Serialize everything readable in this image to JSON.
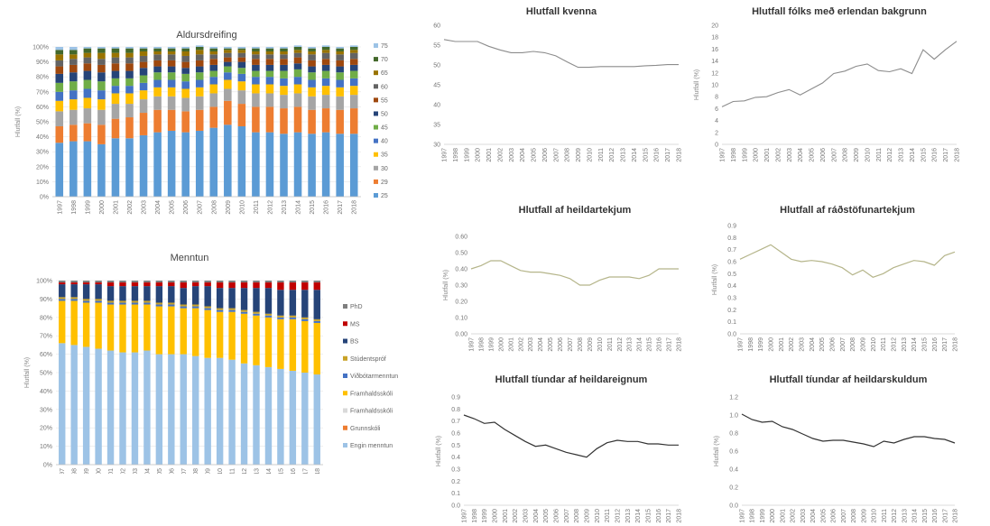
{
  "chart_data": [
    {
      "id": "aldursdreifing",
      "type": "bar",
      "stacked": true,
      "title": "Aldursdreifing",
      "ylabel": "Hlutfall (%)",
      "ylim": [
        0,
        100
      ],
      "yticks": [
        "0%",
        "10%",
        "20%",
        "30%",
        "40%",
        "50%",
        "60%",
        "70%",
        "80%",
        "90%",
        "100%"
      ],
      "categories": [
        "1997",
        "1998",
        "1999",
        "2000",
        "2001",
        "2002",
        "2003",
        "2004",
        "2005",
        "2006",
        "2007",
        "2008",
        "2009",
        "2010",
        "2011",
        "2012",
        "2013",
        "2014",
        "2015",
        "2016",
        "2017",
        "2018"
      ],
      "legend_position": "right",
      "series": [
        {
          "name": "25",
          "color": "#5b9bd5",
          "values": [
            36,
            37,
            37,
            35,
            39,
            39,
            41,
            43,
            44,
            43,
            44,
            46,
            48,
            47,
            43,
            43,
            42,
            43,
            42,
            43,
            42,
            42
          ]
        },
        {
          "name": "29",
          "color": "#ed7d31",
          "values": [
            11,
            11,
            12,
            13,
            13,
            14,
            15,
            15,
            14,
            14,
            14,
            14,
            16,
            15,
            17,
            17,
            17,
            17,
            16,
            16,
            16,
            17
          ]
        },
        {
          "name": "30",
          "color": "#a5a5a5",
          "values": [
            10,
            10,
            10,
            10,
            10,
            9,
            9,
            9,
            9,
            9,
            9,
            9,
            8,
            9,
            9,
            9,
            9,
            9,
            9,
            9,
            9,
            9
          ]
        },
        {
          "name": "35",
          "color": "#ffc000",
          "values": [
            7,
            7,
            7,
            7,
            7,
            7,
            6,
            6,
            6,
            6,
            6,
            6,
            6,
            6,
            6,
            6,
            6,
            6,
            6,
            6,
            6,
            6
          ]
        },
        {
          "name": "40",
          "color": "#4472c4",
          "values": [
            6,
            6,
            6,
            6,
            5,
            5,
            5,
            5,
            5,
            5,
            5,
            5,
            5,
            5,
            5,
            5,
            5,
            5,
            5,
            5,
            5,
            5
          ]
        },
        {
          "name": "45",
          "color": "#70ad47",
          "values": [
            6,
            6,
            6,
            6,
            5,
            5,
            5,
            5,
            5,
            5,
            5,
            4,
            4,
            4,
            4,
            4,
            5,
            5,
            5,
            5,
            5,
            5
          ]
        },
        {
          "name": "50",
          "color": "#264478",
          "values": [
            6,
            6,
            6,
            6,
            5,
            5,
            5,
            4,
            4,
            4,
            4,
            4,
            3,
            4,
            4,
            4,
            4,
            4,
            4,
            4,
            4,
            4
          ]
        },
        {
          "name": "55",
          "color": "#9e480e",
          "values": [
            5,
            5,
            5,
            5,
            5,
            5,
            4,
            4,
            4,
            4,
            4,
            4,
            3,
            3,
            4,
            4,
            4,
            4,
            4,
            4,
            4,
            4
          ]
        },
        {
          "name": "60",
          "color": "#636363",
          "values": [
            4,
            4,
            4,
            4,
            4,
            4,
            4,
            4,
            4,
            4,
            4,
            3,
            3,
            3,
            3,
            3,
            3,
            3,
            4,
            4,
            4,
            4
          ]
        },
        {
          "name": "65",
          "color": "#997300",
          "values": [
            4,
            3,
            3,
            4,
            3,
            3,
            3,
            2,
            2,
            3,
            3,
            2,
            2,
            2,
            2,
            2,
            2,
            2,
            2,
            2,
            2,
            2
          ]
        },
        {
          "name": "70",
          "color": "#43682b",
          "values": [
            3,
            3,
            3,
            3,
            3,
            3,
            2,
            2,
            2,
            2,
            2,
            2,
            1,
            1,
            2,
            2,
            2,
            2,
            2,
            2,
            2,
            2
          ]
        },
        {
          "name": "75",
          "color": "#9dc3e6",
          "values": [
            2,
            2,
            1,
            1,
            1,
            1,
            1,
            1,
            1,
            1,
            1,
            1,
            1,
            1,
            1,
            1,
            1,
            1,
            1,
            1,
            1,
            1
          ]
        }
      ]
    },
    {
      "id": "menntun",
      "type": "bar",
      "stacked": true,
      "title": "Menntun",
      "ylabel": "Hlutfall (%)",
      "ylim": [
        0,
        100
      ],
      "yticks": [
        "0%",
        "10%",
        "20%",
        "30%",
        "40%",
        "50%",
        "60%",
        "70%",
        "80%",
        "90%",
        "100%"
      ],
      "categories": [
        "1997",
        "1998",
        "1999",
        "2000",
        "2001",
        "2002",
        "2003",
        "2004",
        "2005",
        "2006",
        "2007",
        "2008",
        "2009",
        "2010",
        "2011",
        "2012",
        "2013",
        "2014",
        "2015",
        "2016",
        "2017",
        "2018"
      ],
      "legend_position": "right",
      "series": [
        {
          "name": "Engin menntun",
          "color": "#9dc3e6",
          "values": [
            66,
            65,
            64,
            63,
            62,
            61,
            61,
            62,
            60,
            60,
            60,
            59,
            58,
            58,
            57,
            55,
            54,
            53,
            52,
            51,
            50,
            49
          ]
        },
        {
          "name": "Grunnskóli",
          "color": "#ed7d31",
          "values": [
            0,
            0,
            0,
            0,
            0,
            0,
            0,
            0,
            0,
            0,
            0,
            0,
            0,
            0,
            0,
            0,
            0,
            0,
            0,
            0,
            0,
            0
          ]
        },
        {
          "name": "Framhaldsskóli",
          "color": "#d9d9d9",
          "values": [
            0,
            0,
            0,
            0,
            0,
            0,
            0,
            0,
            0,
            0,
            0,
            0,
            0,
            0,
            0,
            0,
            0,
            0,
            0,
            0,
            0,
            0
          ]
        },
        {
          "name": "Framhaldsskóli",
          "color": "#ffc000",
          "values": [
            23,
            24,
            24,
            25,
            25,
            26,
            26,
            25,
            26,
            26,
            25,
            26,
            26,
            25,
            26,
            27,
            27,
            27,
            27,
            28,
            28,
            28
          ]
        },
        {
          "name": "Viðbótarmenntun",
          "color": "#4472c4",
          "values": [
            1,
            1,
            1,
            1,
            1,
            1,
            1,
            1,
            1,
            1,
            1,
            1,
            1,
            1,
            1,
            1,
            1,
            1,
            1,
            1,
            1,
            1
          ]
        },
        {
          "name": "Stúdentspróf",
          "color": "#c9a227",
          "values": [
            1,
            1,
            1,
            1,
            1,
            1,
            1,
            1,
            1,
            1,
            1,
            1,
            1,
            1,
            1,
            1,
            1,
            1,
            1,
            1,
            1,
            1
          ]
        },
        {
          "name": "BS",
          "color": "#264478",
          "values": [
            7,
            7,
            8,
            8,
            8,
            8,
            8,
            8,
            9,
            9,
            9,
            10,
            11,
            11,
            11,
            12,
            13,
            14,
            14,
            14,
            15,
            16
          ]
        },
        {
          "name": "MS",
          "color": "#c00000",
          "values": [
            1,
            1,
            1,
            1,
            2,
            2,
            2,
            2,
            2,
            2,
            3,
            2,
            2,
            3,
            3,
            3,
            3,
            3,
            4,
            4,
            4,
            4
          ]
        },
        {
          "name": "PhD",
          "color": "#7f7f7f",
          "values": [
            1,
            1,
            1,
            1,
            1,
            1,
            1,
            1,
            1,
            1,
            1,
            1,
            1,
            1,
            1,
            1,
            1,
            1,
            1,
            1,
            1,
            1
          ]
        }
      ]
    },
    {
      "id": "kvenna",
      "type": "line",
      "title": "Hlutfall kvenna",
      "ylabel": "Hlutfall (%)",
      "x": [
        "1997",
        "1998",
        "1999",
        "2000",
        "2001",
        "2002",
        "2003",
        "2004",
        "2005",
        "2006",
        "2007",
        "2008",
        "2009",
        "2010",
        "2011",
        "2012",
        "2013",
        "2014",
        "2015",
        "2016",
        "2017",
        "2018"
      ],
      "ylim": [
        30,
        60
      ],
      "series": [
        {
          "values": [
            56.4,
            55.9,
            55.9,
            55.9,
            54.7,
            53.8,
            53.1,
            53.1,
            53.4,
            53.1,
            52.3,
            50.8,
            49.4,
            49.4,
            49.6,
            49.6,
            49.6,
            49.6,
            49.8,
            49.9,
            50.1,
            50.1
          ]
        }
      ]
    },
    {
      "id": "erlendan",
      "type": "line",
      "title": "Hlutfall fólks með erlendan bakgrunn",
      "ylabel": "Hlutfall (%)",
      "x": [
        "1997",
        "1998",
        "1999",
        "2000",
        "2001",
        "2002",
        "2003",
        "2004",
        "2005",
        "2006",
        "2007",
        "2008",
        "2009",
        "2010",
        "2011",
        "2012",
        "2013",
        "2014",
        "2015",
        "2016",
        "2017",
        "2018"
      ],
      "ylim": [
        0,
        20
      ],
      "series": [
        {
          "values": [
            6.3,
            7.2,
            7.3,
            7.9,
            8.0,
            8.7,
            9.2,
            8.3,
            9.3,
            10.3,
            11.9,
            12.3,
            13.1,
            13.5,
            12.4,
            12.2,
            12.7,
            11.9,
            15.9,
            14.3,
            15.9,
            17.3
          ]
        }
      ]
    },
    {
      "id": "heildartekjum",
      "type": "line",
      "title": "Hlutfall af heildartekjum",
      "ylabel": "Hlutfall (%)",
      "x": [
        "1997",
        "1998",
        "1999",
        "2000",
        "2001",
        "2002",
        "2003",
        "2004",
        "2005",
        "2006",
        "2007",
        "2008",
        "2009",
        "2010",
        "2011",
        "2012",
        "2013",
        "2014",
        "2015",
        "2016",
        "2017",
        "2018"
      ],
      "ylim": [
        0,
        0.6
      ],
      "series": [
        {
          "values": [
            0.4,
            0.42,
            0.45,
            0.45,
            0.42,
            0.39,
            0.38,
            0.38,
            0.37,
            0.36,
            0.34,
            0.3,
            0.3,
            0.33,
            0.35,
            0.35,
            0.35,
            0.34,
            0.36,
            0.4,
            0.4,
            0.4
          ]
        }
      ]
    },
    {
      "id": "radstofunartekjum",
      "type": "line",
      "title": "Hlutfall af ráðstöfunartekjum",
      "ylabel": "Hlutfall (%)",
      "x": [
        "1997",
        "1998",
        "1999",
        "2000",
        "2001",
        "2002",
        "2003",
        "2004",
        "2005",
        "2006",
        "2007",
        "2008",
        "2009",
        "2010",
        "2011",
        "2012",
        "2013",
        "2014",
        "2015",
        "2016",
        "2017",
        "2018"
      ],
      "ylim": [
        0,
        0.9
      ],
      "series": [
        {
          "values": [
            0.62,
            0.66,
            0.7,
            0.74,
            0.68,
            0.62,
            0.6,
            0.61,
            0.6,
            0.58,
            0.55,
            0.49,
            0.53,
            0.47,
            0.5,
            0.55,
            0.58,
            0.61,
            0.6,
            0.57,
            0.65,
            0.68
          ]
        }
      ]
    },
    {
      "id": "heildareignum",
      "type": "line",
      "title": "Hlutfall tíundar af heildareignum",
      "ylabel": "Hlutfall (%)",
      "x": [
        "1997",
        "1998",
        "1999",
        "2000",
        "2001",
        "2002",
        "2003",
        "2004",
        "2005",
        "2006",
        "2007",
        "2008",
        "2009",
        "2010",
        "2011",
        "2012",
        "2013",
        "2014",
        "2015",
        "2016",
        "2017",
        "2018"
      ],
      "ylim": [
        0,
        0.9
      ],
      "series": [
        {
          "values": [
            0.75,
            0.72,
            0.68,
            0.69,
            0.63,
            0.58,
            0.53,
            0.49,
            0.5,
            0.47,
            0.44,
            0.42,
            0.4,
            0.47,
            0.52,
            0.54,
            0.53,
            0.53,
            0.51,
            0.51,
            0.5,
            0.5
          ]
        }
      ]
    },
    {
      "id": "heildarskuldum",
      "type": "line",
      "title": "Hlutfall tíundar af heildarskuldum",
      "ylabel": "Hlutfall (%)",
      "x": [
        "1997",
        "1998",
        "1999",
        "2000",
        "2001",
        "2002",
        "2003",
        "2004",
        "2005",
        "2006",
        "2007",
        "2008",
        "2009",
        "2010",
        "2011",
        "2012",
        "2013",
        "2014",
        "2015",
        "2016",
        "2017",
        "2018"
      ],
      "ylim": [
        0,
        1.2
      ],
      "series": [
        {
          "values": [
            1.01,
            0.95,
            0.92,
            0.93,
            0.87,
            0.84,
            0.79,
            0.74,
            0.71,
            0.72,
            0.72,
            0.7,
            0.68,
            0.65,
            0.71,
            0.69,
            0.73,
            0.76,
            0.76,
            0.74,
            0.73,
            0.69
          ]
        }
      ]
    }
  ]
}
